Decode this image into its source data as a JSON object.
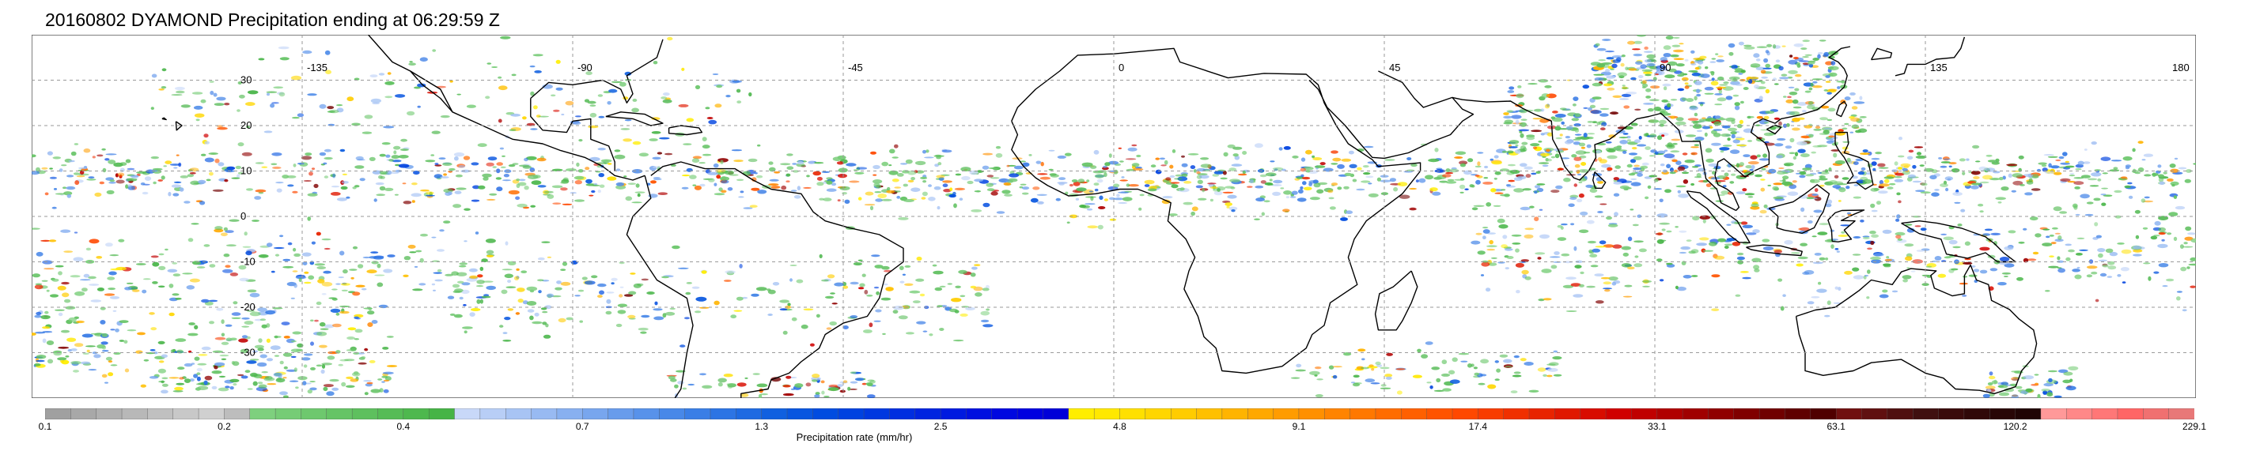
{
  "title": "20160802 DYAMOND Precipitation ending at 06:29:59 Z",
  "map": {
    "lon_labels": [
      "-135",
      "-90",
      "-45",
      "0",
      "45",
      "90",
      "135",
      "180"
    ],
    "lat_labels": [
      "30",
      "20",
      "10",
      "0",
      "-10",
      "-20",
      "-30"
    ],
    "lon_range": [
      -180,
      180
    ],
    "lat_range": [
      -40,
      40
    ],
    "grid": "dashed gray graticule every 45° lon, 10° lat"
  },
  "colorbar": {
    "title": "Precipitation rate (mm/hr)",
    "tick_labels": [
      "0.1",
      "0.2",
      "0.4",
      "0.7",
      "1.3",
      "2.5",
      "4.8",
      "9.1",
      "17.4",
      "33.1",
      "63.1",
      "120.2",
      "229.1"
    ],
    "colors": [
      "#a0a0a0",
      "#a8a8a8",
      "#b0b0b0",
      "#b8b8b8",
      "#c0c0c0",
      "#c8c8c8",
      "#d0d0d0",
      "#bdbdbd",
      "#7ed07e",
      "#76cc76",
      "#6ec86e",
      "#66c466",
      "#5ec05e",
      "#56bc56",
      "#4eb84e",
      "#46b446",
      "#c8d8f8",
      "#b8cef6",
      "#a8c4f4",
      "#98baf2",
      "#88b0f0",
      "#78a6ee",
      "#689cec",
      "#5892ea",
      "#4888e8",
      "#3a7ee6",
      "#2c74e4",
      "#1e6ae2",
      "#1060e0",
      "#0856e0",
      "#004ce0",
      "#0042e0",
      "#0038e0",
      "#002ee0",
      "#0024e0",
      "#001ae0",
      "#0010e0",
      "#0008e0",
      "#0000e0",
      "#0000d8",
      "#ffee00",
      "#ffe800",
      "#ffe000",
      "#ffd600",
      "#ffcc00",
      "#ffc000",
      "#ffb400",
      "#ffa800",
      "#ff9c00",
      "#ff9000",
      "#ff8400",
      "#ff7800",
      "#ff6c00",
      "#ff6000",
      "#ff5400",
      "#ff4800",
      "#f83c00",
      "#f03000",
      "#e82400",
      "#e01800",
      "#d80c00",
      "#d00000",
      "#c00000",
      "#b00000",
      "#a00000",
      "#900000",
      "#800000",
      "#700000",
      "#600000",
      "#500000",
      "#701010",
      "#601010",
      "#501010",
      "#401010",
      "#3a0a0a",
      "#300808",
      "#280606",
      "#200404",
      "#ff9999",
      "#ff8888",
      "#ff7777",
      "#ff6666",
      "#f07070",
      "#e87878"
    ]
  }
}
